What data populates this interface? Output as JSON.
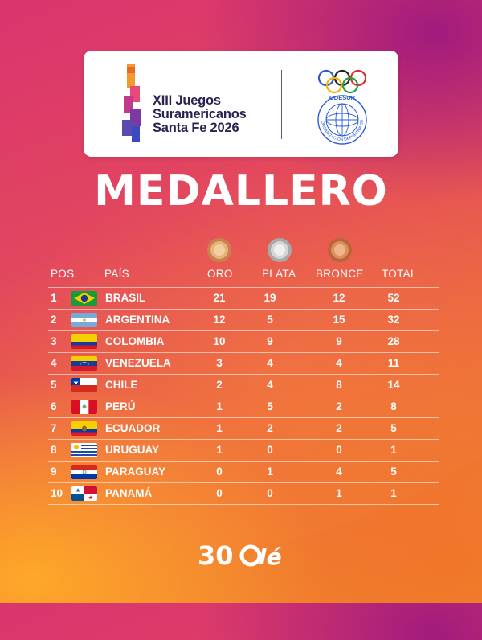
{
  "event": {
    "title": "XIII Juegos\nSuramericanos\nSanta Fe 2026",
    "org_top": "ODESUR",
    "org_ring": "ORGANIZACIÓN DEPORTIVA SURAMERICANA"
  },
  "heading": "MEDALLERO",
  "columns": {
    "pos": "POS.",
    "country": "PAÍS",
    "gold": "ORO",
    "silver": "PLATA",
    "bronze": "BRONCE",
    "total": "TOTAL"
  },
  "colors": {
    "gold_medal": "#d9a06a",
    "silver_medal": "#c8c8c8",
    "bronze_medal": "#d98a5a",
    "title_text": "#2b2250"
  },
  "rows": [
    {
      "pos": "1",
      "country": "BRASIL",
      "flag": "brazil",
      "gold": "21",
      "silver": "19",
      "bronze": "12",
      "total": "52"
    },
    {
      "pos": "2",
      "country": "ARGENTINA",
      "flag": "argentina",
      "gold": "12",
      "silver": "5",
      "bronze": "15",
      "total": "32"
    },
    {
      "pos": "3",
      "country": "COLOMBIA",
      "flag": "colombia",
      "gold": "10",
      "silver": "9",
      "bronze": "9",
      "total": "28"
    },
    {
      "pos": "4",
      "country": "VENEZUELA",
      "flag": "venezuela",
      "gold": "3",
      "silver": "4",
      "bronze": "4",
      "total": "11"
    },
    {
      "pos": "5",
      "country": "CHILE",
      "flag": "chile",
      "gold": "2",
      "silver": "4",
      "bronze": "8",
      "total": "14"
    },
    {
      "pos": "6",
      "country": "PERÚ",
      "flag": "peru",
      "gold": "1",
      "silver": "5",
      "bronze": "2",
      "total": "8"
    },
    {
      "pos": "7",
      "country": "ECUADOR",
      "flag": "ecuador",
      "gold": "1",
      "silver": "2",
      "bronze": "2",
      "total": "5"
    },
    {
      "pos": "8",
      "country": "URUGUAY",
      "flag": "uruguay",
      "gold": "1",
      "silver": "0",
      "bronze": "0",
      "total": "1"
    },
    {
      "pos": "9",
      "country": "PARAGUAY",
      "flag": "paraguay",
      "gold": "0",
      "silver": "1",
      "bronze": "4",
      "total": "5"
    },
    {
      "pos": "10",
      "country": "PANAMÁ",
      "flag": "panama",
      "gold": "0",
      "silver": "0",
      "bronze": "1",
      "total": "1"
    }
  ],
  "footer": {
    "brand_num": "30",
    "brand_text": "lé"
  }
}
